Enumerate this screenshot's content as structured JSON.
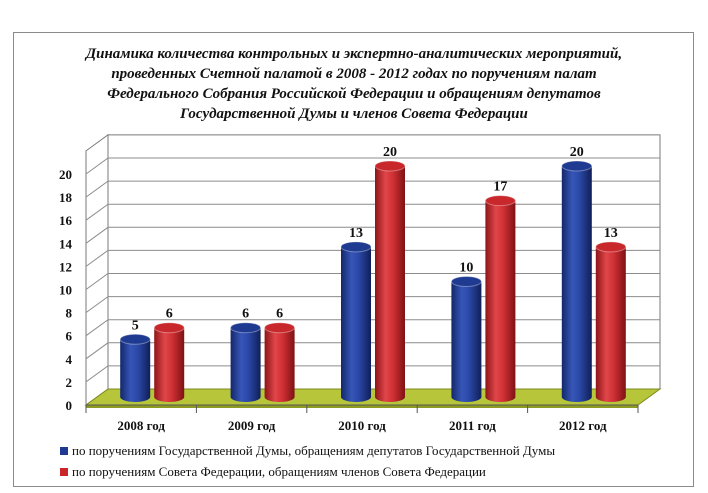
{
  "title": "Динамика количества контрольных и экспертно-аналитических мероприятий,\nпроведенных Счетной  палатой в 2008 - 2012 годах по поручениям палат\nФедерального Собрания Российской Федерации и обращениям депутатов\nГосударственной Думы и членов Совета Федерации",
  "colors": {
    "duma": "#1f3b91",
    "council": "#c8282b",
    "floor": "#b6c53a"
  },
  "chart_data": {
    "type": "bar",
    "style": "3d-cylinder",
    "categories": [
      "2008 год",
      "2009 год",
      "2010 год",
      "2011 год",
      "2012 год"
    ],
    "series": [
      {
        "name": "по поручениям Государственной Думы, обращениям депутатов Государственной Думы",
        "values": [
          5,
          6,
          13,
          10,
          20
        ]
      },
      {
        "name": "по поручениям Совета Федерации, обращениям членов Совета Федерации",
        "values": [
          6,
          6,
          20,
          17,
          13
        ]
      }
    ],
    "yticks": [
      "0",
      "2",
      "4",
      "6",
      "8",
      "10",
      "12",
      "14",
      "16",
      "18",
      "20"
    ],
    "ylim": [
      0,
      22
    ],
    "grid": true,
    "legend_position": "bottom"
  }
}
